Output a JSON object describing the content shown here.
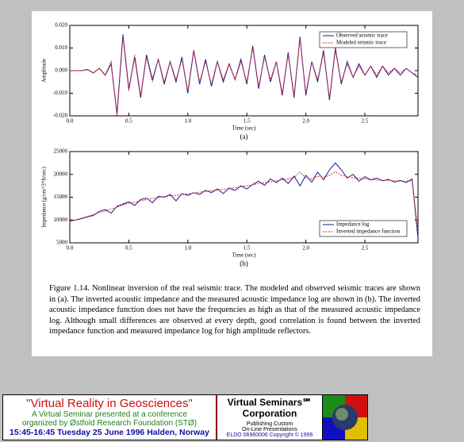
{
  "chart_data": [
    {
      "type": "line",
      "label": "(a)",
      "xlabel": "Time (sec)",
      "ylabel": "Amplitude",
      "xlim": [
        0,
        2.95
      ],
      "ylim": [
        -0.02,
        0.02
      ],
      "xticks": [
        {
          "value": 0,
          "label": "0.0"
        },
        0.5,
        {
          "value": 1,
          "label": "1.0"
        },
        1.5,
        {
          "value": 2,
          "label": "2.0"
        },
        2.5
      ],
      "yticks": [
        {
          "value": -0.02,
          "label": "-0.020"
        },
        {
          "value": -0.01,
          "label": "-0.010"
        },
        {
          "value": 0,
          "label": "0.000"
        },
        {
          "value": 0.01,
          "label": "0.010"
        },
        {
          "value": 0.02,
          "label": "0.020"
        }
      ],
      "legend": "upper right",
      "x": [
        0,
        0.05,
        0.1,
        0.15,
        0.2,
        0.25,
        0.3,
        0.35,
        0.4,
        0.45,
        0.5,
        0.55,
        0.6,
        0.65,
        0.7,
        0.75,
        0.8,
        0.85,
        0.9,
        0.95,
        1,
        1.05,
        1.1,
        1.15,
        1.2,
        1.25,
        1.3,
        1.35,
        1.4,
        1.45,
        1.5,
        1.55,
        1.6,
        1.65,
        1.7,
        1.75,
        1.8,
        1.85,
        1.9,
        1.95,
        2,
        2.05,
        2.1,
        2.15,
        2.2,
        2.25,
        2.3,
        2.35,
        2.4,
        2.45,
        2.5,
        2.55,
        2.6,
        2.65,
        2.7,
        2.75,
        2.8,
        2.85,
        2.9,
        2.95
      ],
      "series": [
        {
          "name": "Observed seismic trace",
          "color": "#1a1a8c",
          "dash": false,
          "values": [
            0,
            0,
            0,
            0.0005,
            -0.001,
            0.001,
            -0.002,
            0.003,
            -0.019,
            0.016,
            -0.008,
            0.006,
            -0.012,
            0.007,
            -0.004,
            0.005,
            -0.006,
            0.004,
            -0.005,
            0.006,
            -0.01,
            0.009,
            -0.006,
            0.005,
            -0.007,
            0.004,
            -0.005,
            0.003,
            -0.004,
            0.005,
            -0.006,
            0.011,
            -0.008,
            0.007,
            -0.005,
            0.004,
            -0.011,
            0.008,
            -0.012,
            0.015,
            -0.011,
            0.004,
            -0.005,
            0.009,
            -0.013,
            0.01,
            -0.006,
            0.004,
            -0.003,
            0.003,
            -0.002,
            0.002,
            -0.003,
            0.002,
            -0.002,
            0.001,
            -0.002,
            0.001,
            -0.001,
            -0.003
          ]
        },
        {
          "name": "Modeled seismic trace",
          "color": "#e0202a",
          "dash": true,
          "values": [
            0,
            0,
            0,
            0.0004,
            -0.001,
            0.001,
            -0.002,
            0.004,
            -0.02,
            0.015,
            -0.009,
            0.007,
            -0.011,
            0.006,
            -0.005,
            0.005,
            -0.005,
            0.004,
            -0.004,
            0.005,
            -0.009,
            0.009,
            -0.005,
            0.004,
            -0.006,
            0.004,
            -0.004,
            0.003,
            -0.004,
            0.004,
            -0.005,
            0.01,
            -0.007,
            0.006,
            -0.004,
            0.004,
            -0.01,
            0.007,
            -0.011,
            0.014,
            -0.01,
            0.004,
            -0.004,
            0.008,
            -0.012,
            0.009,
            -0.005,
            0.003,
            -0.003,
            0.002,
            -0.002,
            0.002,
            -0.002,
            0.002,
            -0.001,
            0.001,
            -0.001,
            0.001,
            -0.001,
            -0.002
          ]
        }
      ]
    },
    {
      "type": "line",
      "label": "(b)",
      "xlabel": "Time (sec)",
      "ylabel": "Impedance (g/cm^3*ft/sec)",
      "xlim": [
        0,
        2.95
      ],
      "ylim": [
        5000,
        25000
      ],
      "xticks": [
        {
          "value": 0,
          "label": "0.0"
        },
        0.5,
        {
          "value": 1,
          "label": "1.0"
        },
        1.5,
        {
          "value": 2,
          "label": "2.0"
        },
        2.5
      ],
      "yticks": [
        5000,
        10000,
        15000,
        20000,
        25000
      ],
      "legend": "lower right",
      "x": [
        0,
        0.05,
        0.1,
        0.15,
        0.2,
        0.25,
        0.3,
        0.35,
        0.4,
        0.45,
        0.5,
        0.55,
        0.6,
        0.65,
        0.7,
        0.75,
        0.8,
        0.85,
        0.9,
        0.95,
        1,
        1.05,
        1.1,
        1.15,
        1.2,
        1.25,
        1.3,
        1.35,
        1.4,
        1.45,
        1.5,
        1.55,
        1.6,
        1.65,
        1.7,
        1.75,
        1.8,
        1.85,
        1.9,
        1.95,
        2,
        2.05,
        2.1,
        2.15,
        2.2,
        2.25,
        2.3,
        2.35,
        2.4,
        2.45,
        2.5,
        2.55,
        2.6,
        2.65,
        2.7,
        2.75,
        2.8,
        2.85,
        2.9,
        2.95
      ],
      "series": [
        {
          "name": "Impedance log",
          "color": "#1a1a8c",
          "dash": false,
          "values": [
            9800,
            10000,
            10300,
            10700,
            11000,
            11900,
            12300,
            11500,
            13000,
            13500,
            14000,
            13200,
            14500,
            14800,
            13800,
            15200,
            15000,
            15600,
            14200,
            15800,
            15400,
            16000,
            15600,
            16500,
            16000,
            16800,
            15800,
            17000,
            16500,
            17500,
            16800,
            17800,
            18500,
            17600,
            19000,
            18200,
            19200,
            18000,
            19600,
            17500,
            19800,
            18300,
            20500,
            18800,
            21000,
            22500,
            21000,
            19200,
            20000,
            18500,
            19500,
            18800,
            19200,
            18600,
            18900,
            18300,
            18700,
            18200,
            19000,
            6000
          ]
        },
        {
          "name": "Inverted impedance function",
          "color": "#e0202a",
          "dash": true,
          "values": [
            9700,
            10000,
            10400,
            10800,
            11200,
            11600,
            12000,
            12400,
            12800,
            13300,
            13700,
            13900,
            14200,
            14500,
            14700,
            14900,
            15100,
            15300,
            15400,
            15600,
            15700,
            15900,
            16100,
            16300,
            16400,
            16600,
            16700,
            16900,
            17100,
            17300,
            17500,
            17700,
            18000,
            18200,
            18400,
            18600,
            18800,
            19000,
            19300,
            20500,
            19200,
            19000,
            19600,
            19400,
            19800,
            20600,
            19800,
            19500,
            19300,
            19100,
            19000,
            18900,
            18800,
            18700,
            18700,
            18600,
            18500,
            18500,
            18600,
            7500
          ]
        }
      ]
    }
  ],
  "caption": "Figure 1.14.  Nonlinear inversion of the real seismic trace.  The modeled and observed seismic traces are shown in (a).  The inverted acoustic impedance and the measured acoustic impedance log are shown in (b).  The inverted acoustic impedance function does not have the frequencies as high as that of the measured acoustic impedance log.  Although small differences are observed at every depth, good correlation is found between the inverted impedance function and measured impedance log for high amplitude reflectors.",
  "banner": {
    "title": "\"Virtual Reality in Geosciences\"",
    "line1": "A Virtual Seminar presented at a conference",
    "line2": "organized by Østfold Research Foundation (STØ)",
    "line3": "15:45-16:45 Tuesday 25 June 1996 Halden, Norway",
    "company1": "Virtual Seminars℠",
    "company2": "Corporation",
    "tag1": "Publishing Custom",
    "tag2": "On-Line Presentations",
    "copyright": "ELDO 06960006 Copyright © 1996"
  }
}
